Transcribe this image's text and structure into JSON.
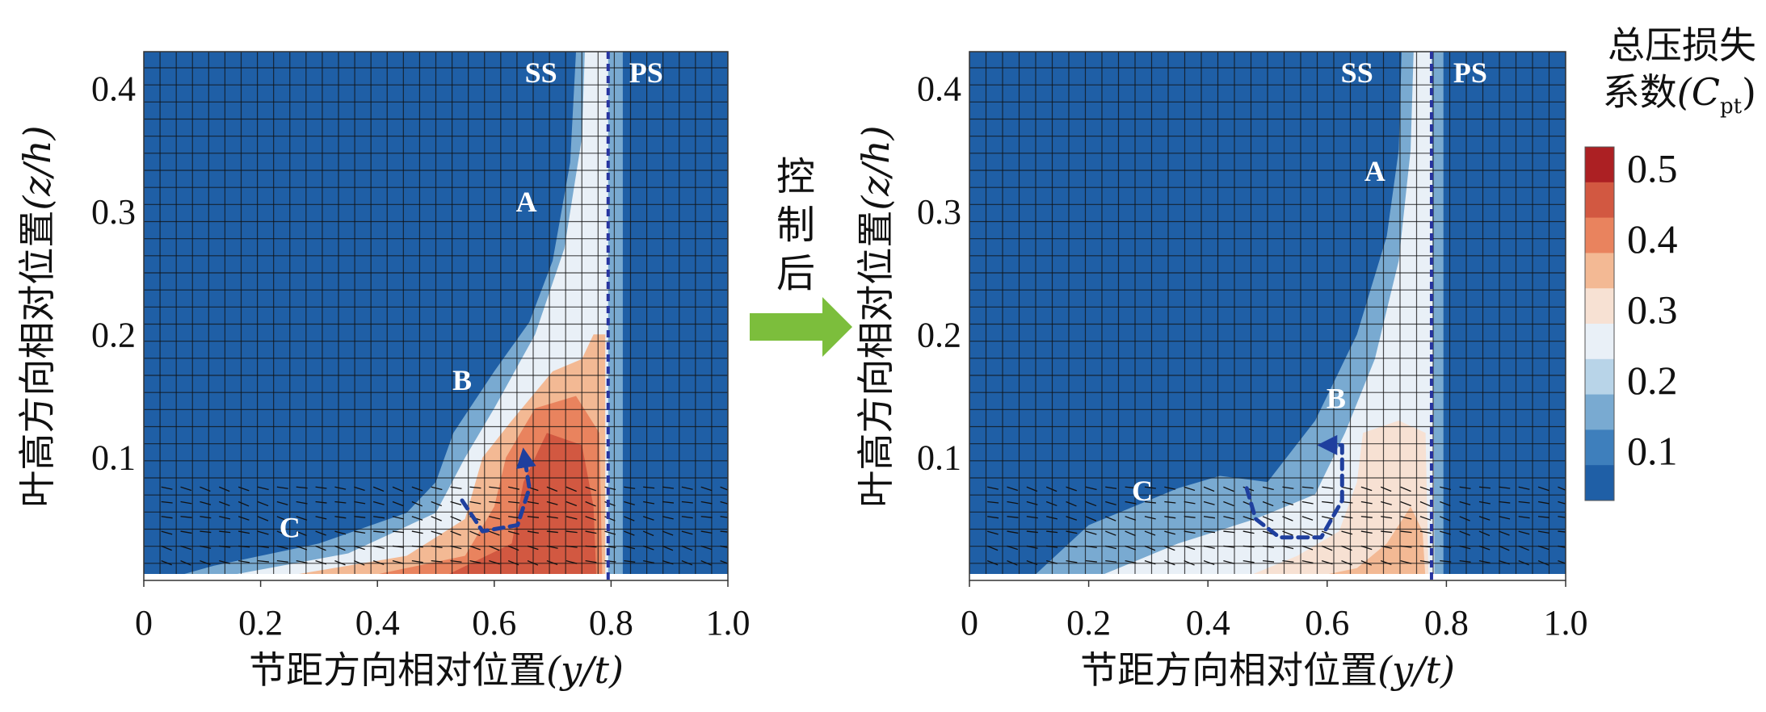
{
  "chart_data": [
    {
      "type": "heatmap",
      "panel": "before-control",
      "xlabel_main": "节距方向相对位置",
      "xlabel_var": "(y/t)",
      "ylabel_main": "叶高方向相对位置",
      "ylabel_var": "(z/h)",
      "xlim": [
        0,
        1.0
      ],
      "ylim": [
        0,
        0.43
      ],
      "x_ticks": [
        "0",
        "0.2",
        "0.4",
        "0.6",
        "0.8",
        "1.0"
      ],
      "y_ticks": [
        "0.1",
        "0.2",
        "0.3",
        "0.4"
      ],
      "blade_line_x": 0.795,
      "labels": [
        {
          "text": "SS",
          "x": 0.68,
          "y": 0.405
        },
        {
          "text": "PS",
          "x": 0.86,
          "y": 0.405
        },
        {
          "text": "A",
          "x": 0.655,
          "y": 0.3
        },
        {
          "text": "B",
          "x": 0.545,
          "y": 0.155
        },
        {
          "text": "C",
          "x": 0.25,
          "y": 0.035
        }
      ],
      "loss_zones": [
        {
          "level": 0.15,
          "points": [
            [
              0.03,
              0
            ],
            [
              0.12,
              0.012
            ],
            [
              0.3,
              0.03
            ],
            [
              0.45,
              0.055
            ],
            [
              0.5,
              0.08
            ],
            [
              0.53,
              0.12
            ],
            [
              0.6,
              0.17
            ],
            [
              0.66,
              0.21
            ],
            [
              0.7,
              0.26
            ],
            [
              0.73,
              0.34
            ],
            [
              0.74,
              0.43
            ],
            [
              0.82,
              0.43
            ],
            [
              0.82,
              0
            ]
          ]
        },
        {
          "level": 0.25,
          "points": [
            [
              0.1,
              0
            ],
            [
              0.35,
              0.022
            ],
            [
              0.5,
              0.055
            ],
            [
              0.55,
              0.1
            ],
            [
              0.6,
              0.14
            ],
            [
              0.67,
              0.2
            ],
            [
              0.72,
              0.27
            ],
            [
              0.75,
              0.36
            ],
            [
              0.755,
              0.43
            ],
            [
              0.795,
              0.43
            ],
            [
              0.795,
              0
            ]
          ]
        },
        {
          "level": 0.35,
          "points": [
            [
              0.2,
              0
            ],
            [
              0.45,
              0.02
            ],
            [
              0.55,
              0.05
            ],
            [
              0.58,
              0.1
            ],
            [
              0.63,
              0.13
            ],
            [
              0.7,
              0.17
            ],
            [
              0.75,
              0.18
            ],
            [
              0.77,
              0.2
            ],
            [
              0.79,
              0.2
            ],
            [
              0.79,
              0
            ]
          ]
        },
        {
          "level": 0.42,
          "points": [
            [
              0.35,
              0
            ],
            [
              0.55,
              0.02
            ],
            [
              0.6,
              0.06
            ],
            [
              0.62,
              0.1
            ],
            [
              0.67,
              0.14
            ],
            [
              0.74,
              0.15
            ],
            [
              0.78,
              0.12
            ],
            [
              0.785,
              0
            ]
          ]
        },
        {
          "level": 0.48,
          "points": [
            [
              0.5,
              0
            ],
            [
              0.63,
              0.03
            ],
            [
              0.65,
              0.08
            ],
            [
              0.69,
              0.12
            ],
            [
              0.75,
              0.11
            ],
            [
              0.77,
              0.06
            ],
            [
              0.775,
              0
            ]
          ]
        }
      ],
      "vortex_arrow": [
        [
          0.545,
          0.065
        ],
        [
          0.58,
          0.04
        ],
        [
          0.64,
          0.045
        ],
        [
          0.66,
          0.075
        ],
        [
          0.652,
          0.1
        ]
      ]
    },
    {
      "type": "heatmap",
      "panel": "after-control",
      "xlabel_main": "节距方向相对位置",
      "xlabel_var": "(y/t)",
      "ylabel_main": "叶高方向相对位置",
      "ylabel_var": "(z/h)",
      "xlim": [
        0,
        1.0
      ],
      "ylim": [
        0,
        0.43
      ],
      "x_ticks": [
        "0",
        "0.2",
        "0.4",
        "0.6",
        "0.8",
        "1.0"
      ],
      "y_ticks": [
        "0.1",
        "0.2",
        "0.3",
        "0.4"
      ],
      "blade_line_x": 0.775,
      "labels": [
        {
          "text": "SS",
          "x": 0.65,
          "y": 0.405
        },
        {
          "text": "PS",
          "x": 0.84,
          "y": 0.405
        },
        {
          "text": "A",
          "x": 0.68,
          "y": 0.325
        },
        {
          "text": "B",
          "x": 0.615,
          "y": 0.14
        },
        {
          "text": "C",
          "x": 0.29,
          "y": 0.065
        }
      ],
      "loss_zones": [
        {
          "level": 0.15,
          "points": [
            [
              0.1,
              0
            ],
            [
              0.2,
              0.045
            ],
            [
              0.35,
              0.075
            ],
            [
              0.42,
              0.085
            ],
            [
              0.5,
              0.08
            ],
            [
              0.58,
              0.13
            ],
            [
              0.65,
              0.2
            ],
            [
              0.7,
              0.28
            ],
            [
              0.72,
              0.35
            ],
            [
              0.725,
              0.43
            ],
            [
              0.795,
              0.43
            ],
            [
              0.795,
              0
            ]
          ]
        },
        {
          "level": 0.25,
          "points": [
            [
              0.2,
              0
            ],
            [
              0.35,
              0.03
            ],
            [
              0.48,
              0.05
            ],
            [
              0.58,
              0.07
            ],
            [
              0.63,
              0.12
            ],
            [
              0.68,
              0.18
            ],
            [
              0.72,
              0.26
            ],
            [
              0.74,
              0.35
            ],
            [
              0.745,
              0.43
            ],
            [
              0.775,
              0.43
            ],
            [
              0.78,
              0
            ]
          ]
        },
        {
          "level": 0.32,
          "points": [
            [
              0.45,
              0
            ],
            [
              0.55,
              0.02
            ],
            [
              0.62,
              0.04
            ],
            [
              0.65,
              0.08
            ],
            [
              0.66,
              0.12
            ],
            [
              0.72,
              0.13
            ],
            [
              0.765,
              0.12
            ],
            [
              0.77,
              0
            ]
          ]
        },
        {
          "level": 0.38,
          "points": [
            [
              0.55,
              0
            ],
            [
              0.65,
              0.01
            ],
            [
              0.7,
              0.03
            ],
            [
              0.74,
              0.06
            ],
            [
              0.76,
              0.04
            ],
            [
              0.765,
              0
            ]
          ]
        }
      ],
      "vortex_arrow": [
        [
          0.465,
          0.075
        ],
        [
          0.48,
          0.05
        ],
        [
          0.52,
          0.035
        ],
        [
          0.59,
          0.035
        ],
        [
          0.625,
          0.065
        ],
        [
          0.625,
          0.11
        ],
        [
          0.6,
          0.11
        ]
      ]
    }
  ],
  "colorbar": {
    "title_line1": "总压损失",
    "title_line2_cn": "系数",
    "title_symbol": "(C",
    "title_sub": "pt",
    "title_close": ")",
    "levels": [
      0.1,
      0.15,
      0.2,
      0.25,
      0.3,
      0.35,
      0.4,
      0.45,
      0.5
    ],
    "tick_labels": [
      "0.5",
      "0.4",
      "0.3",
      "0.2",
      "0.1"
    ],
    "colors": [
      "#1f5fa6",
      "#3e7fbc",
      "#79aad1",
      "#b8d4e8",
      "#e9f0f7",
      "#f7e1d3",
      "#f3b994",
      "#e9835e",
      "#d25841",
      "#ac2023"
    ]
  },
  "control_text": [
    "控",
    "制",
    "后"
  ],
  "colors": {
    "field": "#1f5fa6",
    "blade_line": "#2734a0",
    "arrow_fill": "#7cbe3c",
    "vortex": "#1f3f9e"
  }
}
